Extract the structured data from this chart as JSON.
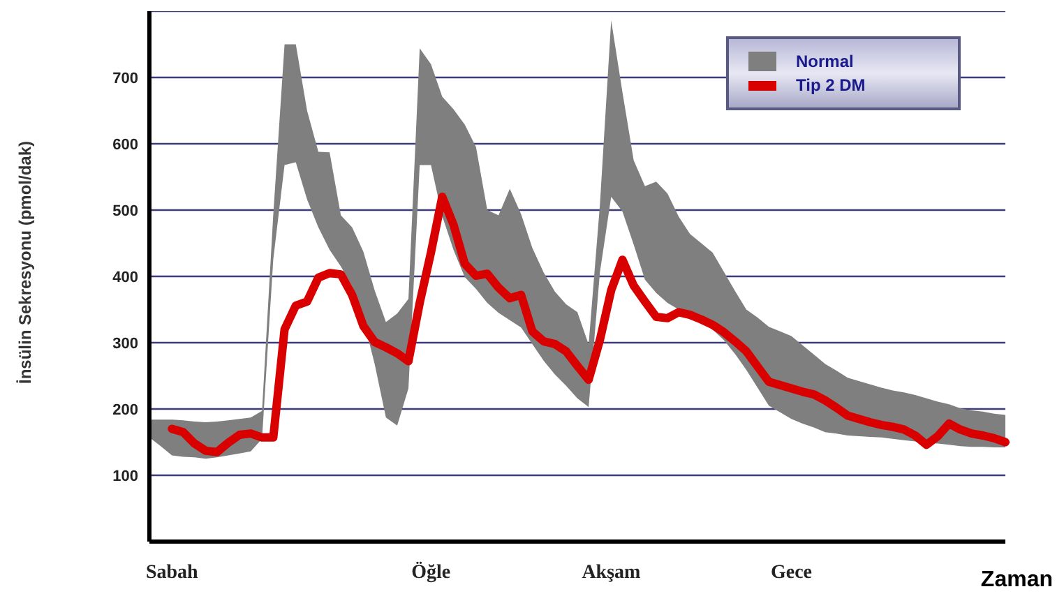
{
  "chart_data": {
    "type": "line",
    "xlabel": "Zaman",
    "ylabel": "İnsülin Sekresyonu (pmol/dak)",
    "categories": [
      null,
      null,
      "Sabah",
      null,
      null,
      null,
      null,
      null,
      null,
      null,
      null,
      null,
      null,
      null,
      null,
      null,
      null,
      null,
      null,
      null,
      null,
      null,
      null,
      null,
      null,
      "Öğle",
      null,
      null,
      null,
      null,
      null,
      null,
      null,
      null,
      null,
      null,
      null,
      null,
      null,
      null,
      null,
      "Akşam",
      null,
      null,
      null,
      null,
      null,
      null,
      null,
      null,
      null,
      null,
      null,
      null,
      null,
      null,
      null,
      "Gece",
      null,
      null,
      null,
      null,
      null,
      null,
      null,
      null,
      null,
      null,
      null,
      null,
      null,
      null,
      null,
      null,
      null,
      null,
      null
    ],
    "ylim": [
      0,
      800
    ],
    "yticks": [
      {
        "value": 100,
        "label": "100"
      },
      {
        "value": 200,
        "label": "200"
      },
      {
        "value": 300,
        "label": "300"
      },
      {
        "value": 400,
        "label": "400"
      },
      {
        "value": 500,
        "label": "500"
      },
      {
        "value": 600,
        "label": "600"
      },
      {
        "value": 700,
        "label": "700"
      },
      {
        "value": 800,
        "label": null
      }
    ],
    "grid": "y",
    "legend": "top right",
    "marker": "none",
    "line_style": "solid",
    "series": [
      {
        "name": "Normal",
        "type": "area",
        "color": "#7f7f7f",
        "values": [
          null,
          null,
          null,
          null,
          null,
          null,
          null,
          null,
          null,
          null,
          null,
          null,
          null,
          null,
          null,
          null,
          null,
          null,
          null,
          null,
          null,
          null,
          null,
          null,
          null,
          null,
          null,
          null,
          null,
          null,
          null,
          null,
          null,
          null,
          null,
          null,
          null,
          null,
          null,
          null,
          null,
          null,
          null,
          null,
          null,
          null,
          null,
          null,
          null,
          null,
          null,
          null,
          null,
          null,
          null,
          null,
          null,
          null,
          null,
          null,
          null,
          null,
          null,
          null,
          null,
          null,
          null,
          null,
          null,
          null,
          null,
          null,
          null,
          null,
          null,
          null,
          null
        ],
        "lower": [
          157,
          144,
          130,
          128,
          127,
          125,
          127,
          130,
          133,
          136,
          155,
          426,
          568,
          572,
          516,
          474,
          440,
          415,
          385,
          335,
          268,
          187,
          175,
          231,
          568,
          568,
          491,
          440,
          399,
          381,
          360,
          345,
          334,
          323,
          298,
          273,
          252,
          235,
          216,
          203,
          406,
          520,
          498,
          448,
          395,
          375,
          360,
          350,
          340,
          330,
          320,
          304,
          283,
          259,
          232,
          205,
          195,
          185,
          178,
          172,
          165,
          163,
          160,
          159,
          158,
          157,
          155,
          153,
          151,
          149,
          148,
          146,
          144,
          143,
          143,
          142,
          142
        ],
        "upper": [
          184,
          184,
          184,
          183,
          181,
          180,
          181,
          183,
          185,
          187,
          197,
          494,
          750,
          750,
          650,
          588,
          587,
          492,
          474,
          437,
          379,
          331,
          344,
          366,
          744,
          720,
          671,
          652,
          629,
          595,
          500,
          492,
          532,
          494,
          443,
          406,
          377,
          358,
          346,
          297,
          508,
          786,
          678,
          575,
          536,
          543,
          525,
          490,
          464,
          450,
          436,
          407,
          378,
          350,
          338,
          324,
          317,
          310,
          296,
          282,
          268,
          258,
          247,
          242,
          237,
          232,
          228,
          225,
          221,
          216,
          211,
          207,
          201,
          198,
          196,
          193,
          191
        ]
      },
      {
        "name": "Tip 2 DM",
        "color": "#d90000",
        "values": [
          null,
          null,
          170,
          165,
          148,
          137,
          135,
          149,
          161,
          163,
          157,
          157,
          320,
          356,
          362,
          398,
          405,
          403,
          372,
          325,
          301,
          293,
          284,
          272,
          360,
          436,
          520,
          478,
          419,
          401,
          404,
          383,
          367,
          372,
          317,
          302,
          298,
          287,
          265,
          244,
          304,
          379,
          425,
          386,
          362,
          339,
          337,
          346,
          342,
          335,
          327,
          316,
          302,
          287,
          264,
          241,
          236,
          231,
          226,
          222,
          213,
          202,
          190,
          185,
          180,
          176,
          173,
          169,
          160,
          146,
          159,
          178,
          169,
          163,
          160,
          156,
          150
        ]
      }
    ]
  }
}
